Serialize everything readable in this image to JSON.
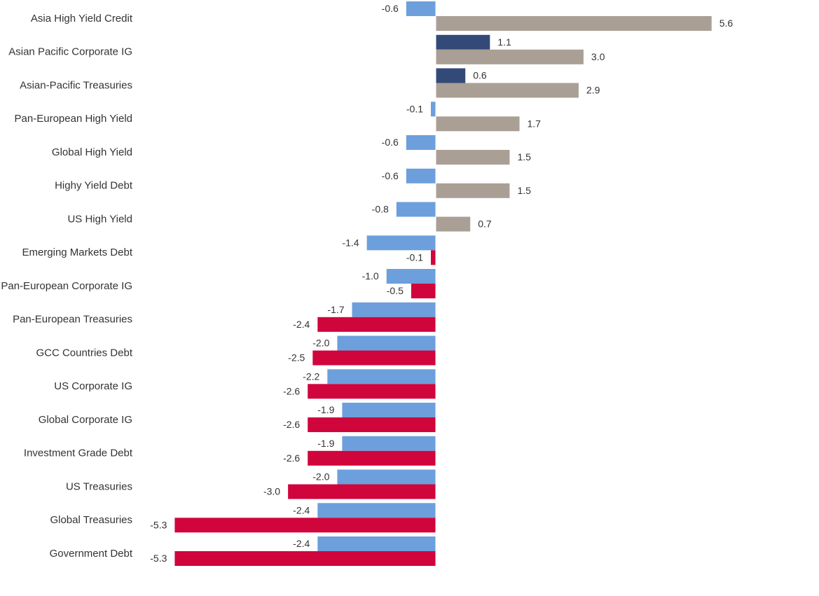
{
  "chart_data": {
    "type": "bar",
    "orientation": "horizontal",
    "categories": [
      "Asia High Yield Credit",
      "Asian Pacific Corporate IG",
      "Asian-Pacific Treasuries",
      "Pan-European High Yield",
      "Global High Yield",
      "Highy Yield Debt",
      "US High Yield",
      "Emerging Markets Debt",
      "Pan-European Corporate IG",
      "Pan-European Treasuries",
      "GCC Countries Debt",
      "US Corporate IG",
      "Global Corporate IG",
      "Investment Grade Debt",
      "US Treasuries",
      "Global Treasuries",
      "Government Debt"
    ],
    "series": [
      {
        "values": [
          -0.6,
          1.1,
          0.6,
          -0.1,
          -0.6,
          -0.6,
          -0.8,
          -1.4,
          -1.0,
          -1.7,
          -2.0,
          -2.2,
          -1.9,
          -1.9,
          -2.0,
          -2.4,
          -2.4
        ],
        "labels": [
          "-0.6",
          "1.1",
          "0.6",
          "-0.1",
          "-0.6",
          "-0.6",
          "-0.8",
          "-1.4",
          "-1.0",
          "-1.7",
          "-2.0",
          "-2.2",
          "-1.9",
          "-1.9",
          "-2.0",
          "-2.4",
          "-2.4"
        ],
        "color_positive": "#334a78",
        "color_negative": "#6c9fdc"
      },
      {
        "values": [
          5.6,
          3.0,
          2.9,
          1.7,
          1.5,
          1.5,
          0.7,
          -0.1,
          -0.5,
          -2.4,
          -2.5,
          -2.6,
          -2.6,
          -2.6,
          -3.0,
          -5.3,
          -5.3
        ],
        "labels": [
          "5.6",
          "3.0",
          "2.9",
          "1.7",
          "1.5",
          "1.5",
          "0.7",
          "-0.1",
          "-0.5",
          "-2.4",
          "-2.5",
          "-2.6",
          "-2.6",
          "-2.6",
          "-3.0",
          "-5.3",
          "-5.3"
        ],
        "color_positive": "#aa9f94",
        "color_negative": "#d0053c"
      }
    ],
    "xlim": [
      -5.3,
      7.9
    ],
    "grid": false,
    "legend": "none"
  }
}
